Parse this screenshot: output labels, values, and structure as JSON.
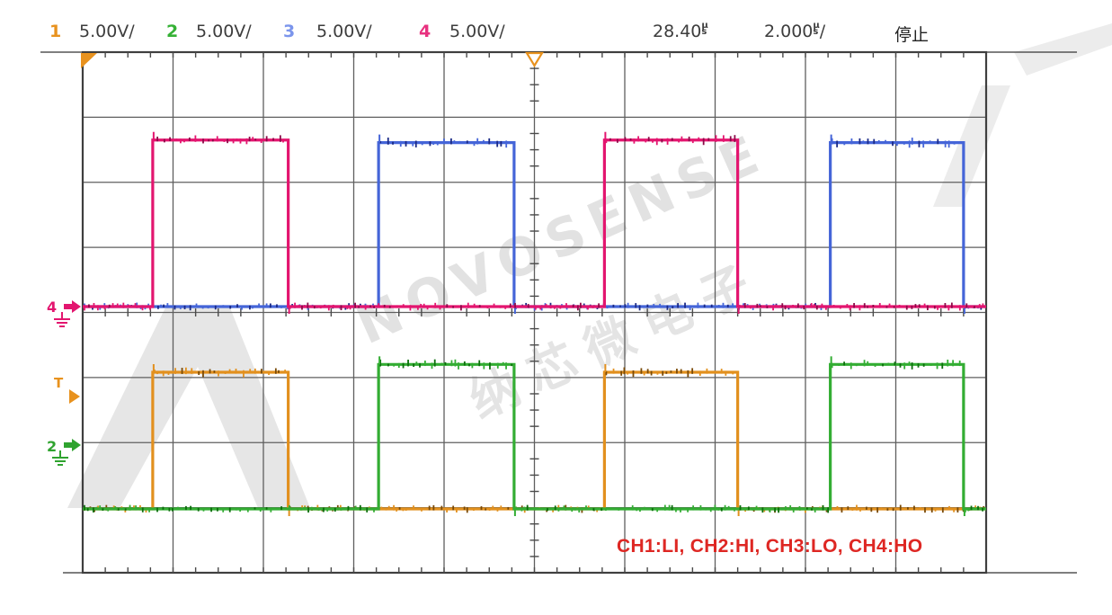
{
  "header": {
    "channels": [
      {
        "num": "1",
        "scale": "5.00V/",
        "color": "#E8921E"
      },
      {
        "num": "2",
        "scale": "5.00V/",
        "color": "#35B135"
      },
      {
        "num": "3",
        "scale": "5.00V/",
        "color": "#7B95EC"
      },
      {
        "num": "4",
        "scale": "5.00V/",
        "color": "#E8317F"
      }
    ],
    "delay_value": "28.40",
    "timebase_value": "2.000",
    "timebase_suffix": "/",
    "unit_mu": "µ",
    "unit_s": "s",
    "run_state": "停止"
  },
  "watermark": {
    "line1": "NOVOSENSE",
    "line2": "纳芯微电子"
  },
  "annotation": {
    "text": "CH1:LI, CH2:HI, CH3:LO, CH4:HO",
    "color": "#DE2723"
  },
  "markers": {
    "ch4_ground": {
      "label": "4",
      "color": "#E3156F"
    },
    "trigger_level": {
      "label": "T",
      "color": "#E8921E"
    },
    "ch2_ground": {
      "label": "2",
      "color": "#2FA32F"
    }
  },
  "chart_data": {
    "type": "line",
    "subtype": "oscilloscope-square-waves",
    "time_per_div_us": 2,
    "volts_per_div": 5,
    "divisions": {
      "x": 10,
      "y": 8
    },
    "x_range_us": [
      0,
      20
    ],
    "grid": "on",
    "series": [
      {
        "channel": "CH3",
        "signal": "LO",
        "color": "#4565D8",
        "noise_color": "#1b2a86",
        "zero": "upper",
        "high_v": 12.6,
        "low_v": 0,
        "pulses_us": [
          [
            6.55,
            9.55
          ],
          [
            16.55,
            19.5
          ]
        ]
      },
      {
        "channel": "CH4",
        "signal": "HO",
        "color": "#E3156F",
        "noise_color": "#8d0a49",
        "zero": "upper",
        "high_v": 12.8,
        "low_v": 0,
        "pulses_us": [
          [
            1.55,
            4.55
          ],
          [
            11.55,
            14.5
          ]
        ]
      },
      {
        "channel": "CH1",
        "signal": "LI",
        "color": "#E2901E",
        "noise_color": "#7a4a07",
        "zero": "lower",
        "high_v": 10.5,
        "low_v": 0,
        "pulses_us": [
          [
            1.55,
            4.55
          ],
          [
            11.55,
            14.5
          ]
        ]
      },
      {
        "channel": "CH2",
        "signal": "HI",
        "color": "#33AD33",
        "noise_color": "#0c6e0c",
        "zero": "lower",
        "high_v": 11.1,
        "low_v": 0,
        "pulses_us": [
          [
            6.55,
            9.55
          ],
          [
            16.55,
            19.5
          ]
        ]
      }
    ]
  }
}
